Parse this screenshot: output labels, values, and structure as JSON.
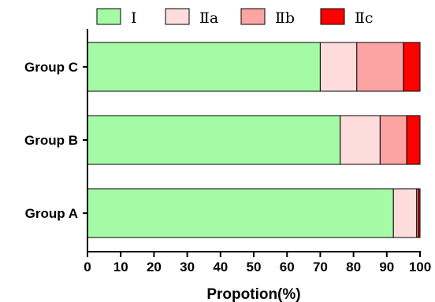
{
  "chart_data": {
    "type": "bar",
    "orientation": "horizontal",
    "stacked": true,
    "title": "",
    "xlabel": "Propotion(%)",
    "ylabel": "",
    "xlim": [
      0,
      100
    ],
    "x_ticks": [
      "0",
      "10",
      "20",
      "30",
      "40",
      "50",
      "60",
      "70",
      "80",
      "90",
      "100"
    ],
    "categories": [
      "Group A",
      "Group B",
      "Group C"
    ],
    "series": [
      {
        "name": "Ⅰ",
        "color": "#a5fba5",
        "values": [
          92,
          76,
          70
        ]
      },
      {
        "name": "Ⅱa",
        "color": "#fedcdc",
        "values": [
          7,
          12,
          11
        ]
      },
      {
        "name": "Ⅱb",
        "color": "#fca4a4",
        "values": [
          0.5,
          8,
          14
        ]
      },
      {
        "name": "Ⅱc",
        "color": "#fe0000",
        "values": [
          0.5,
          4,
          5
        ]
      }
    ],
    "legend": {
      "position": "top"
    },
    "grid": false
  }
}
